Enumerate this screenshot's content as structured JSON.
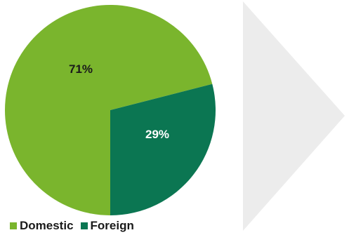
{
  "chart_data": {
    "type": "pie",
    "slices": [
      {
        "name": "Domestic",
        "value": 71,
        "label": "71%",
        "color": "#7ab52d"
      },
      {
        "name": "Foreign",
        "value": 29,
        "label": "29%",
        "color": "#0b7652"
      }
    ],
    "legend": {
      "placement": "bottom",
      "items": [
        {
          "name": "Domestic",
          "color": "#7ab52d"
        },
        {
          "name": "Foreign",
          "color": "#0b7652"
        }
      ]
    }
  },
  "colors": {
    "label_on_domestic": "#1a1a1a",
    "label_on_foreign": "#ffffff",
    "arrow_fill": "#ececec"
  },
  "icons": {
    "arrow": "chevron-right-icon"
  }
}
